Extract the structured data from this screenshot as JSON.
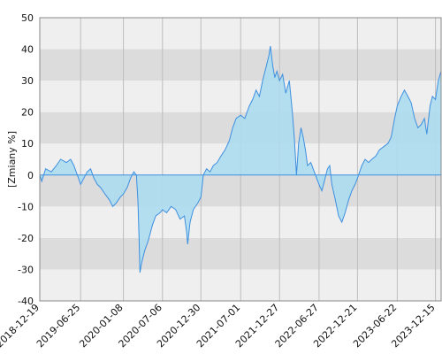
{
  "chart_data": {
    "type": "area",
    "ylabel": "[Zmiany %]",
    "xlabel": "",
    "ylim": [
      -40,
      50
    ],
    "y_ticks": [
      -40,
      -30,
      -20,
      -10,
      0,
      10,
      20,
      30,
      40,
      50
    ],
    "x_range": [
      "2018-12-19",
      "2024-01-10"
    ],
    "x_ticks": [
      "2018-12-19",
      "2019-06-25",
      "2020-01-08",
      "2020-07-06",
      "2020-12-30",
      "2021-07-01",
      "2021-12-27",
      "2022-06-27",
      "2022-12-21",
      "2023-06-22",
      "2023-12-15"
    ],
    "grid": "horizontal bands and vertical lines",
    "colors": {
      "line": "#3d8fe0",
      "fill": "#acdcf0",
      "band_light": "#efefef",
      "band_dark": "#dcdcdc",
      "grid_line": "#bdbdbd"
    },
    "series": [
      {
        "values": [
          [
            "2018-12-19",
            0
          ],
          [
            "2018-12-28",
            -2
          ],
          [
            "2019-01-15",
            2
          ],
          [
            "2019-02-10",
            1
          ],
          [
            "2019-03-05",
            3
          ],
          [
            "2019-03-25",
            5
          ],
          [
            "2019-04-20",
            4
          ],
          [
            "2019-05-10",
            5
          ],
          [
            "2019-05-25",
            3
          ],
          [
            "2019-06-10",
            0
          ],
          [
            "2019-06-25",
            -3
          ],
          [
            "2019-07-10",
            -1
          ],
          [
            "2019-07-25",
            1
          ],
          [
            "2019-08-10",
            2
          ],
          [
            "2019-08-25",
            -1
          ],
          [
            "2019-09-10",
            -3
          ],
          [
            "2019-09-25",
            -4
          ],
          [
            "2019-10-15",
            -6
          ],
          [
            "2019-11-05",
            -8
          ],
          [
            "2019-11-20",
            -10
          ],
          [
            "2019-12-05",
            -9
          ],
          [
            "2019-12-25",
            -7
          ],
          [
            "2020-01-08",
            -6
          ],
          [
            "2020-01-25",
            -4
          ],
          [
            "2020-02-10",
            -1
          ],
          [
            "2020-02-25",
            1
          ],
          [
            "2020-03-08",
            0
          ],
          [
            "2020-03-15",
            -8
          ],
          [
            "2020-03-20",
            -20
          ],
          [
            "2020-03-24",
            -31
          ],
          [
            "2020-04-01",
            -28
          ],
          [
            "2020-04-15",
            -24
          ],
          [
            "2020-05-01",
            -21
          ],
          [
            "2020-05-20",
            -16
          ],
          [
            "2020-06-05",
            -13
          ],
          [
            "2020-06-25",
            -12
          ],
          [
            "2020-07-06",
            -11
          ],
          [
            "2020-07-25",
            -12
          ],
          [
            "2020-08-15",
            -10
          ],
          [
            "2020-09-05",
            -11
          ],
          [
            "2020-09-25",
            -14
          ],
          [
            "2020-10-15",
            -13
          ],
          [
            "2020-10-25",
            -18
          ],
          [
            "2020-10-30",
            -22
          ],
          [
            "2020-11-10",
            -15
          ],
          [
            "2020-11-25",
            -11
          ],
          [
            "2020-12-15",
            -9
          ],
          [
            "2020-12-30",
            -7
          ],
          [
            "2021-01-10",
            0
          ],
          [
            "2021-01-25",
            2
          ],
          [
            "2021-02-10",
            1
          ],
          [
            "2021-02-25",
            3
          ],
          [
            "2021-03-15",
            4
          ],
          [
            "2021-04-01",
            6
          ],
          [
            "2021-04-20",
            8
          ],
          [
            "2021-05-10",
            11
          ],
          [
            "2021-05-25",
            15
          ],
          [
            "2021-06-10",
            18
          ],
          [
            "2021-07-01",
            19
          ],
          [
            "2021-07-20",
            18
          ],
          [
            "2021-08-10",
            22
          ],
          [
            "2021-08-25",
            24
          ],
          [
            "2021-09-10",
            27
          ],
          [
            "2021-09-25",
            25
          ],
          [
            "2021-10-10",
            30
          ],
          [
            "2021-10-25",
            34
          ],
          [
            "2021-11-08",
            38
          ],
          [
            "2021-11-15",
            41
          ],
          [
            "2021-11-25",
            35
          ],
          [
            "2021-12-05",
            31
          ],
          [
            "2021-12-15",
            33
          ],
          [
            "2021-12-27",
            30
          ],
          [
            "2022-01-10",
            32
          ],
          [
            "2022-01-25",
            26
          ],
          [
            "2022-02-10",
            30
          ],
          [
            "2022-02-24",
            20
          ],
          [
            "2022-03-05",
            12
          ],
          [
            "2022-03-15",
            0
          ],
          [
            "2022-03-25",
            10
          ],
          [
            "2022-04-05",
            15
          ],
          [
            "2022-04-15",
            12
          ],
          [
            "2022-04-25",
            8
          ],
          [
            "2022-05-05",
            3
          ],
          [
            "2022-05-20",
            4
          ],
          [
            "2022-06-05",
            1
          ],
          [
            "2022-06-27",
            -3
          ],
          [
            "2022-07-10",
            -5
          ],
          [
            "2022-07-25",
            -1
          ],
          [
            "2022-08-05",
            2
          ],
          [
            "2022-08-15",
            3
          ],
          [
            "2022-08-25",
            -3
          ],
          [
            "2022-09-10",
            -8
          ],
          [
            "2022-09-25",
            -13
          ],
          [
            "2022-10-10",
            -15
          ],
          [
            "2022-10-25",
            -12
          ],
          [
            "2022-11-10",
            -8
          ],
          [
            "2022-11-25",
            -5
          ],
          [
            "2022-12-10",
            -3
          ],
          [
            "2022-12-21",
            -1
          ],
          [
            "2023-01-10",
            3
          ],
          [
            "2023-01-25",
            5
          ],
          [
            "2023-02-10",
            4
          ],
          [
            "2023-02-25",
            5
          ],
          [
            "2023-03-15",
            6
          ],
          [
            "2023-04-01",
            8
          ],
          [
            "2023-04-20",
            9
          ],
          [
            "2023-05-10",
            10
          ],
          [
            "2023-05-25",
            12
          ],
          [
            "2023-06-10",
            18
          ],
          [
            "2023-06-22",
            22
          ],
          [
            "2023-07-10",
            25
          ],
          [
            "2023-07-25",
            27
          ],
          [
            "2023-08-10",
            25
          ],
          [
            "2023-08-25",
            23
          ],
          [
            "2023-09-10",
            18
          ],
          [
            "2023-09-25",
            15
          ],
          [
            "2023-10-10",
            16
          ],
          [
            "2023-10-25",
            18
          ],
          [
            "2023-11-05",
            13
          ],
          [
            "2023-11-20",
            22
          ],
          [
            "2023-12-01",
            25
          ],
          [
            "2023-12-15",
            24
          ],
          [
            "2023-12-28",
            30
          ],
          [
            "2024-01-10",
            33
          ]
        ]
      }
    ]
  }
}
